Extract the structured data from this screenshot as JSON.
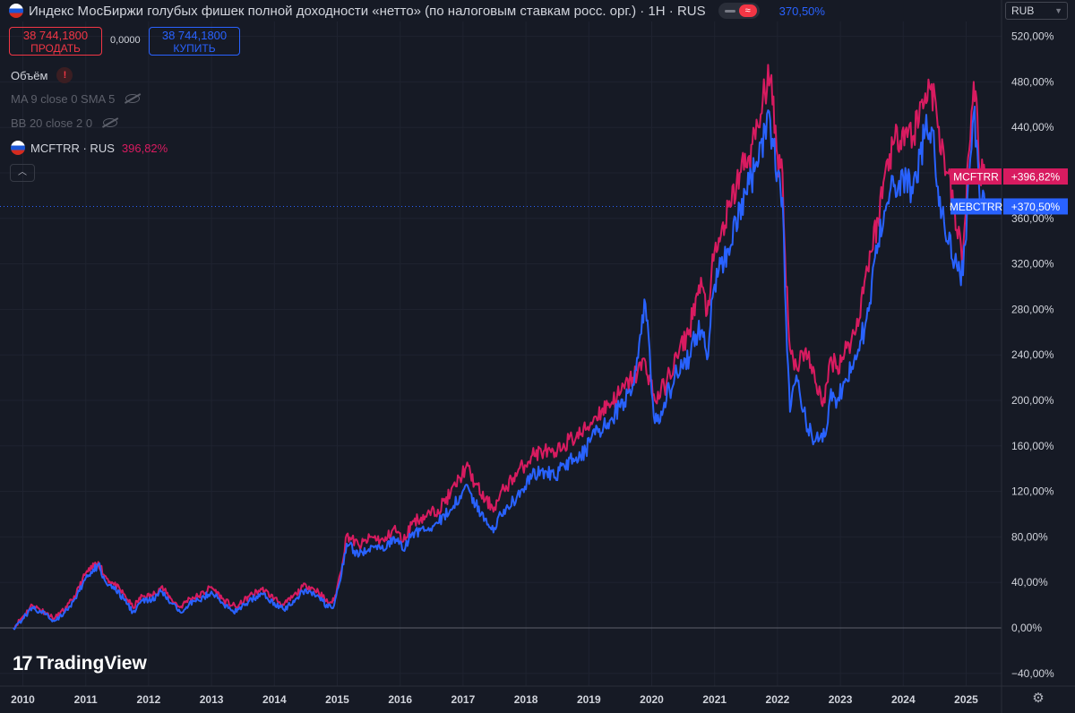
{
  "header": {
    "title": "Индекс МосБиржи голубых фишек полной доходности «нетто» (по налоговым ставкам росс. орг.) · 1Н · RUS",
    "compare_percent": "370,50%",
    "currency": "RUB"
  },
  "trade": {
    "sell_price": "38 744,1800",
    "sell_label": "ПРОДАТЬ",
    "spread": "0,0000",
    "buy_price": "38 744,1800",
    "buy_label": "КУПИТЬ"
  },
  "indicators": {
    "volume": "Объём",
    "ma": "MA 9 close 0 SMA 5",
    "bb": "BB 20 close 2 0",
    "compare_symbol": "MCFTRR · RUS",
    "compare_value": "396,82%"
  },
  "branding": "TradingView",
  "colors": {
    "background": "#161a25",
    "main": "#2962ff",
    "compare": "#d81b60",
    "grid": "#1f2330",
    "axis_text": "#d1d4dc"
  },
  "chart_data": {
    "type": "line",
    "x_unit": "year",
    "y_unit": "percent",
    "ylim": [
      -48,
      540
    ],
    "xlim": [
      2009.85,
      2025.5
    ],
    "y_ticks": [
      -40,
      0,
      40,
      80,
      120,
      160,
      200,
      240,
      280,
      320,
      360,
      400,
      440,
      480,
      520
    ],
    "y_tick_labels": [
      "−40,00%",
      "0,00%",
      "40,00%",
      "80,00%",
      "120,00%",
      "160,00%",
      "200,00%",
      "240,00%",
      "280,00%",
      "320,00%",
      "360,00%",
      "400,00%",
      "440,00%",
      "480,00%",
      "520,00%"
    ],
    "x_ticks": [
      2010,
      2011,
      2012,
      2013,
      2014,
      2015,
      2016,
      2017,
      2018,
      2019,
      2020,
      2021,
      2022,
      2023,
      2024,
      2025
    ],
    "x_tick_labels": [
      "2010",
      "2011",
      "2012",
      "2013",
      "2014",
      "2015",
      "2016",
      "2017",
      "2018",
      "2019",
      "2020",
      "2021",
      "2022",
      "2023",
      "2024",
      "2025"
    ],
    "grid": true,
    "series": [
      {
        "name": "MCFTRR",
        "color": "#d81b60",
        "label": "+396,82%",
        "last": 396.82,
        "points": [
          [
            2009.85,
            0
          ],
          [
            2010.0,
            10
          ],
          [
            2010.15,
            20
          ],
          [
            2010.35,
            14
          ],
          [
            2010.5,
            8
          ],
          [
            2010.7,
            18
          ],
          [
            2010.85,
            30
          ],
          [
            2011.0,
            48
          ],
          [
            2011.1,
            52
          ],
          [
            2011.2,
            58
          ],
          [
            2011.3,
            46
          ],
          [
            2011.45,
            38
          ],
          [
            2011.6,
            30
          ],
          [
            2011.75,
            18
          ],
          [
            2011.9,
            28
          ],
          [
            2012.05,
            28
          ],
          [
            2012.2,
            36
          ],
          [
            2012.35,
            26
          ],
          [
            2012.5,
            18
          ],
          [
            2012.65,
            26
          ],
          [
            2012.8,
            28
          ],
          [
            2013.0,
            36
          ],
          [
            2013.2,
            24
          ],
          [
            2013.4,
            18
          ],
          [
            2013.6,
            28
          ],
          [
            2013.8,
            34
          ],
          [
            2014.0,
            26
          ],
          [
            2014.15,
            20
          ],
          [
            2014.35,
            30
          ],
          [
            2014.5,
            38
          ],
          [
            2014.7,
            32
          ],
          [
            2014.85,
            22
          ],
          [
            2014.95,
            24
          ],
          [
            2015.05,
            48
          ],
          [
            2015.15,
            82
          ],
          [
            2015.35,
            72
          ],
          [
            2015.55,
            80
          ],
          [
            2015.75,
            76
          ],
          [
            2015.9,
            88
          ],
          [
            2016.05,
            76
          ],
          [
            2016.2,
            94
          ],
          [
            2016.4,
            98
          ],
          [
            2016.6,
            104
          ],
          [
            2016.8,
            118
          ],
          [
            2016.95,
            132
          ],
          [
            2017.05,
            142
          ],
          [
            2017.2,
            126
          ],
          [
            2017.35,
            112
          ],
          [
            2017.5,
            106
          ],
          [
            2017.65,
            122
          ],
          [
            2017.8,
            132
          ],
          [
            2017.95,
            142
          ],
          [
            2018.1,
            152
          ],
          [
            2018.3,
            156
          ],
          [
            2018.45,
            150
          ],
          [
            2018.6,
            162
          ],
          [
            2018.8,
            168
          ],
          [
            2018.95,
            174
          ],
          [
            2019.1,
            186
          ],
          [
            2019.3,
            196
          ],
          [
            2019.5,
            206
          ],
          [
            2019.7,
            220
          ],
          [
            2019.9,
            234
          ],
          [
            2020.05,
            200
          ],
          [
            2020.2,
            212
          ],
          [
            2020.4,
            238
          ],
          [
            2020.6,
            262
          ],
          [
            2020.7,
            290
          ],
          [
            2020.8,
            300
          ],
          [
            2020.88,
            276
          ],
          [
            2020.95,
            312
          ],
          [
            2021.1,
            345
          ],
          [
            2021.25,
            370
          ],
          [
            2021.4,
            400
          ],
          [
            2021.55,
            415
          ],
          [
            2021.7,
            440
          ],
          [
            2021.8,
            470
          ],
          [
            2021.85,
            495
          ],
          [
            2021.92,
            460
          ],
          [
            2022.0,
            415
          ],
          [
            2022.08,
            400
          ],
          [
            2022.12,
            328
          ],
          [
            2022.2,
            245
          ],
          [
            2022.3,
            230
          ],
          [
            2022.45,
            246
          ],
          [
            2022.6,
            216
          ],
          [
            2022.75,
            198
          ],
          [
            2022.85,
            238
          ],
          [
            2022.95,
            230
          ],
          [
            2023.1,
            246
          ],
          [
            2023.25,
            262
          ],
          [
            2023.4,
            310
          ],
          [
            2023.6,
            360
          ],
          [
            2023.75,
            412
          ],
          [
            2023.85,
            426
          ],
          [
            2024.0,
            440
          ],
          [
            2024.15,
            432
          ],
          [
            2024.35,
            470
          ],
          [
            2024.45,
            478
          ],
          [
            2024.55,
            440
          ],
          [
            2024.7,
            400
          ],
          [
            2024.85,
            350
          ],
          [
            2024.95,
            330
          ],
          [
            2025.05,
            420
          ],
          [
            2025.12,
            480
          ],
          [
            2025.18,
            450
          ],
          [
            2025.22,
            400
          ],
          [
            2025.3,
            397
          ]
        ]
      },
      {
        "name": "MEBCTRR",
        "color": "#2962ff",
        "label": "+370,50%",
        "last": 370.5,
        "points": [
          [
            2009.85,
            0
          ],
          [
            2010.0,
            8
          ],
          [
            2010.15,
            18
          ],
          [
            2010.35,
            12
          ],
          [
            2010.5,
            6
          ],
          [
            2010.7,
            16
          ],
          [
            2010.85,
            26
          ],
          [
            2011.0,
            44
          ],
          [
            2011.1,
            48
          ],
          [
            2011.2,
            56
          ],
          [
            2011.3,
            42
          ],
          [
            2011.45,
            34
          ],
          [
            2011.6,
            26
          ],
          [
            2011.75,
            14
          ],
          [
            2011.9,
            24
          ],
          [
            2012.05,
            24
          ],
          [
            2012.2,
            32
          ],
          [
            2012.35,
            22
          ],
          [
            2012.5,
            14
          ],
          [
            2012.65,
            22
          ],
          [
            2012.8,
            24
          ],
          [
            2013.0,
            32
          ],
          [
            2013.2,
            20
          ],
          [
            2013.4,
            14
          ],
          [
            2013.6,
            24
          ],
          [
            2013.8,
            30
          ],
          [
            2014.0,
            22
          ],
          [
            2014.15,
            16
          ],
          [
            2014.35,
            26
          ],
          [
            2014.5,
            34
          ],
          [
            2014.7,
            28
          ],
          [
            2014.85,
            18
          ],
          [
            2014.95,
            20
          ],
          [
            2015.05,
            42
          ],
          [
            2015.15,
            74
          ],
          [
            2015.35,
            64
          ],
          [
            2015.55,
            72
          ],
          [
            2015.75,
            68
          ],
          [
            2015.9,
            80
          ],
          [
            2016.05,
            68
          ],
          [
            2016.2,
            84
          ],
          [
            2016.4,
            86
          ],
          [
            2016.6,
            92
          ],
          [
            2016.8,
            104
          ],
          [
            2016.95,
            116
          ],
          [
            2017.05,
            126
          ],
          [
            2017.2,
            108
          ],
          [
            2017.35,
            96
          ],
          [
            2017.5,
            88
          ],
          [
            2017.65,
            104
          ],
          [
            2017.8,
            112
          ],
          [
            2017.95,
            122
          ],
          [
            2018.1,
            134
          ],
          [
            2018.3,
            138
          ],
          [
            2018.45,
            132
          ],
          [
            2018.6,
            144
          ],
          [
            2018.8,
            150
          ],
          [
            2018.95,
            156
          ],
          [
            2019.1,
            170
          ],
          [
            2019.3,
            180
          ],
          [
            2019.5,
            194
          ],
          [
            2019.7,
            214
          ],
          [
            2019.9,
            285
          ],
          [
            2020.05,
            180
          ],
          [
            2020.2,
            198
          ],
          [
            2020.4,
            224
          ],
          [
            2020.6,
            238
          ],
          [
            2020.7,
            258
          ],
          [
            2020.8,
            262
          ],
          [
            2020.88,
            236
          ],
          [
            2020.95,
            288
          ],
          [
            2021.1,
            320
          ],
          [
            2021.25,
            335
          ],
          [
            2021.4,
            372
          ],
          [
            2021.55,
            390
          ],
          [
            2021.7,
            410
          ],
          [
            2021.8,
            440
          ],
          [
            2021.85,
            455
          ],
          [
            2021.92,
            430
          ],
          [
            2022.0,
            400
          ],
          [
            2022.08,
            378
          ],
          [
            2022.12,
            296
          ],
          [
            2022.2,
            190
          ],
          [
            2022.3,
            222
          ],
          [
            2022.45,
            182
          ],
          [
            2022.6,
            164
          ],
          [
            2022.75,
            168
          ],
          [
            2022.85,
            210
          ],
          [
            2022.95,
            200
          ],
          [
            2023.1,
            218
          ],
          [
            2023.25,
            236
          ],
          [
            2023.4,
            268
          ],
          [
            2023.6,
            338
          ],
          [
            2023.75,
            374
          ],
          [
            2023.85,
            388
          ],
          [
            2024.0,
            396
          ],
          [
            2024.15,
            382
          ],
          [
            2024.35,
            438
          ],
          [
            2024.45,
            440
          ],
          [
            2024.55,
            388
          ],
          [
            2024.7,
            340
          ],
          [
            2024.85,
            318
          ],
          [
            2024.95,
            310
          ],
          [
            2025.05,
            400
          ],
          [
            2025.12,
            452
          ],
          [
            2025.18,
            420
          ],
          [
            2025.22,
            372
          ],
          [
            2025.3,
            370.5
          ]
        ]
      }
    ]
  }
}
